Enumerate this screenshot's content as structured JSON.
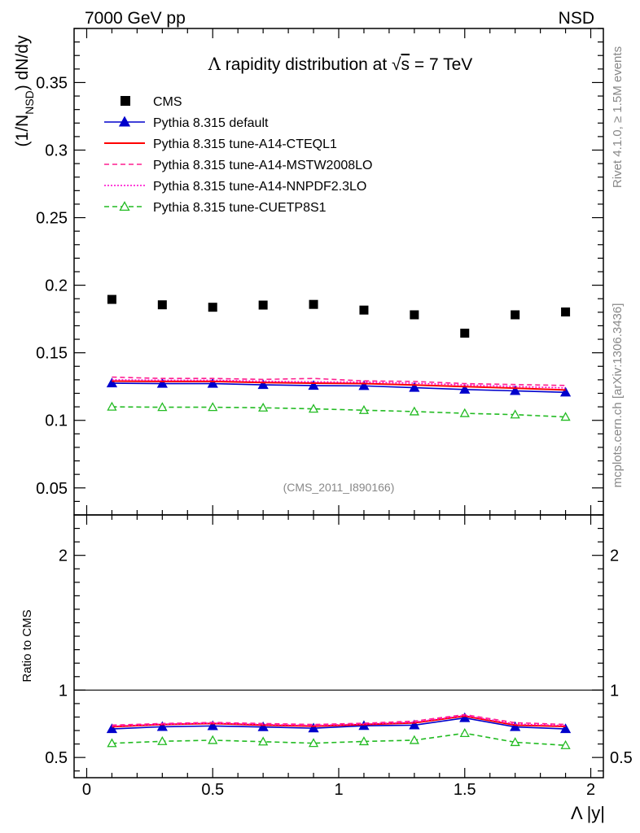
{
  "header": {
    "left": "7000 GeV pp",
    "right": "NSD"
  },
  "side_labels": {
    "rivet": "Rivet 4.1.0, ≥ 1.5M events",
    "mcplots": "mcplots.cern.ch [arXiv:1306.3436]"
  },
  "chart_data": {
    "type": "line",
    "title": "Λ rapidity distribution at √s = 7 TeV",
    "title_parts": {
      "lambda": "Λ",
      "pre": "rapidity distribution at",
      "sqrt": "√",
      "s": "s",
      "post": "= 7 TeV"
    },
    "analysis_id": "(CMS_2011_I890166)",
    "xlabel": "Λ |y|",
    "ylabel": "(1/N_NSD) dN/dy",
    "ylabel_parts": {
      "a": "(1/N",
      "sub": "NSD",
      "b": ") dN/dy"
    },
    "ratio_ylabel": "Ratio to CMS",
    "xlim": [
      -0.05,
      2.05
    ],
    "ylim": [
      0.03,
      0.39
    ],
    "ratio_ylim": [
      0.35,
      2.3
    ],
    "x_ticks": [
      0,
      0.5,
      1,
      1.5,
      2
    ],
    "x_tick_labels": [
      "0",
      "0.5",
      "1",
      "1.5",
      "2"
    ],
    "y_ticks": [
      0.05,
      0.1,
      0.15,
      0.2,
      0.25,
      0.3,
      0.35
    ],
    "y_tick_labels": [
      "0.05",
      "0.1",
      "0.15",
      "0.2",
      "0.25",
      "0.3",
      "0.35"
    ],
    "ratio_y_ticks": [
      0.5,
      1,
      2
    ],
    "ratio_y_tick_labels": [
      "0.5",
      "1",
      "2"
    ],
    "legend_position": "top-left",
    "x": [
      0.1,
      0.3,
      0.5,
      0.7,
      0.9,
      1.1,
      1.3,
      1.5,
      1.7,
      1.9
    ],
    "series": [
      {
        "name": "CMS",
        "color": "#000000",
        "style": "marker-square",
        "values": [
          0.1895,
          0.1855,
          0.1837,
          0.1853,
          0.1858,
          0.1816,
          0.1781,
          0.1645,
          0.1781,
          0.1802
        ],
        "ratio": [
          1,
          1,
          1,
          1,
          1,
          1,
          1,
          1,
          1,
          1
        ]
      },
      {
        "name": "Pythia 8.315 default",
        "color": "#0000cc",
        "style": "solid-triangle",
        "values": [
          0.1275,
          0.1272,
          0.1272,
          0.1263,
          0.1257,
          0.1255,
          0.1242,
          0.1228,
          0.1218,
          0.1207
        ],
        "ratio": [
          0.712,
          0.728,
          0.734,
          0.726,
          0.717,
          0.735,
          0.74,
          0.793,
          0.727,
          0.712
        ]
      },
      {
        "name": "Pythia 8.315 tune-A14-CTEQL1",
        "color": "#ff0000",
        "style": "solid",
        "values": [
          0.129,
          0.1288,
          0.1288,
          0.128,
          0.1275,
          0.1272,
          0.1262,
          0.125,
          0.1238,
          0.1225
        ],
        "ratio": [
          0.728,
          0.745,
          0.752,
          0.74,
          0.732,
          0.745,
          0.757,
          0.807,
          0.74,
          0.73
        ]
      },
      {
        "name": "Pythia 8.315 tune-A14-MSTW2008LO",
        "color": "#ff1f8f",
        "style": "dashed",
        "values": [
          0.132,
          0.131,
          0.131,
          0.1303,
          0.131,
          0.1292,
          0.1288,
          0.1272,
          0.1265,
          0.1258
        ],
        "ratio": [
          0.74,
          0.752,
          0.76,
          0.752,
          0.745,
          0.754,
          0.77,
          0.818,
          0.758,
          0.745
        ]
      },
      {
        "name": "Pythia 8.315 tune-A14-NNPDF2.3LO",
        "color": "#ff00cc",
        "style": "dotted",
        "values": [
          0.13,
          0.1297,
          0.1297,
          0.129,
          0.1285,
          0.1283,
          0.1275,
          0.1262,
          0.125,
          0.124
        ],
        "ratio": [
          0.733,
          0.747,
          0.755,
          0.745,
          0.738,
          0.748,
          0.762,
          0.812,
          0.748,
          0.737
        ]
      },
      {
        "name": "Pythia 8.315 tune-CUETP8S1",
        "color": "#22bb22",
        "style": "dashed-open-triangle",
        "values": [
          0.11,
          0.1097,
          0.1097,
          0.1093,
          0.1085,
          0.1075,
          0.1065,
          0.1052,
          0.1042,
          0.1025
        ],
        "ratio": [
          0.605,
          0.62,
          0.628,
          0.617,
          0.606,
          0.619,
          0.628,
          0.68,
          0.613,
          0.59
        ]
      }
    ]
  }
}
